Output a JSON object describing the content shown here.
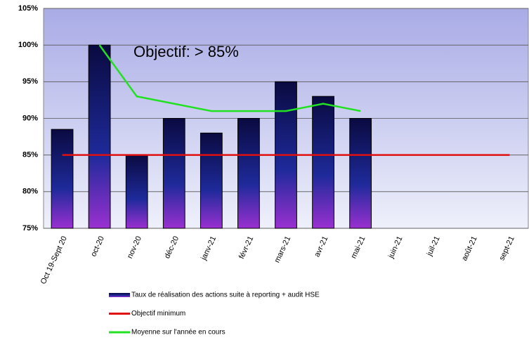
{
  "chart_data": {
    "type": "bar",
    "categories": [
      "Oct 19-Sept 20",
      "oct-20",
      "nov-20",
      "déc-20",
      "janv-21",
      "févr-21",
      "mars-21",
      "avr-21",
      "mai-21",
      "juin-21",
      "juil-21",
      "août-21",
      "sept-21"
    ],
    "series": [
      {
        "name": "Taux de réalisation des actions suite à reporting + audit HSE",
        "type": "bar",
        "color": "#14145a",
        "values": [
          88.5,
          100,
          85,
          90,
          88,
          90,
          95,
          93,
          90,
          null,
          null,
          null,
          null
        ]
      },
      {
        "name": "Objectif minimum",
        "type": "line",
        "color": "#e01010",
        "values": [
          85,
          85,
          85,
          85,
          85,
          85,
          85,
          85,
          85,
          85,
          85,
          85,
          85
        ]
      },
      {
        "name": "Moyenne sur l'année en cours",
        "type": "line",
        "color": "#22e022",
        "values": [
          null,
          100,
          93,
          92,
          91,
          91,
          91,
          92,
          91,
          null,
          null,
          null,
          null
        ]
      }
    ],
    "annotation": "Objectif: > 85%",
    "ylim": [
      75,
      105
    ],
    "yticks": [
      {
        "value": 75,
        "label": "75%"
      },
      {
        "value": 80,
        "label": "80%"
      },
      {
        "value": 85,
        "label": "85%"
      },
      {
        "value": 90,
        "label": "90%"
      },
      {
        "value": 95,
        "label": "95%"
      },
      {
        "value": 100,
        "label": "100%"
      },
      {
        "value": 105,
        "label": "105%"
      }
    ],
    "grid": true
  }
}
